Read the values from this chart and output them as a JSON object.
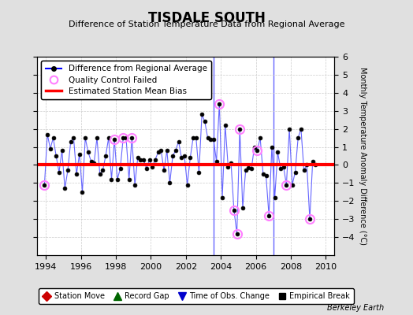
{
  "title": "TISDALE SOUTH",
  "subtitle": "Difference of Station Temperature Data from Regional Average",
  "ylabel": "Monthly Temperature Anomaly Difference (°C)",
  "xlabel_bottom": "Berkeley Earth",
  "xlim": [
    1993.5,
    2010.5
  ],
  "ylim": [
    -5,
    6
  ],
  "yticks": [
    -4,
    -3,
    -2,
    -1,
    0,
    1,
    2,
    3,
    4,
    5,
    6
  ],
  "xticks": [
    1994,
    1996,
    1998,
    2000,
    2002,
    2004,
    2006,
    2008,
    2010
  ],
  "bias_line": 0.0,
  "bias_color": "#ff0000",
  "line_color": "#6666ff",
  "marker_color": "#000000",
  "qc_color": "#ff80ff",
  "vertical_line_x": [
    2003.58,
    2007.0
  ],
  "vertical_line_color": "#6666ff",
  "background_color": "#e0e0e0",
  "plot_background": "#ffffff",
  "time_series": [
    [
      1993.9167,
      -1.1
    ],
    [
      1994.0833,
      1.7
    ],
    [
      1994.25,
      0.9
    ],
    [
      1994.4167,
      1.5
    ],
    [
      1994.5833,
      0.5
    ],
    [
      1994.75,
      -0.4
    ],
    [
      1994.9167,
      0.8
    ],
    [
      1995.0833,
      -1.3
    ],
    [
      1995.25,
      -0.3
    ],
    [
      1995.4167,
      1.3
    ],
    [
      1995.5833,
      1.5
    ],
    [
      1995.75,
      -0.5
    ],
    [
      1995.9167,
      0.6
    ],
    [
      1996.0833,
      -1.5
    ],
    [
      1996.25,
      1.5
    ],
    [
      1996.4167,
      0.7
    ],
    [
      1996.5833,
      0.2
    ],
    [
      1996.75,
      0.1
    ],
    [
      1996.9167,
      1.5
    ],
    [
      1997.0833,
      -0.5
    ],
    [
      1997.25,
      -0.3
    ],
    [
      1997.4167,
      0.5
    ],
    [
      1997.5833,
      1.5
    ],
    [
      1997.75,
      -0.8
    ],
    [
      1997.9167,
      1.4
    ],
    [
      1998.0833,
      -0.8
    ],
    [
      1998.25,
      -0.2
    ],
    [
      1998.4167,
      1.5
    ],
    [
      1998.5833,
      1.5
    ],
    [
      1998.75,
      -0.8
    ],
    [
      1998.9167,
      1.5
    ],
    [
      1999.0833,
      -1.1
    ],
    [
      1999.25,
      0.4
    ],
    [
      1999.4167,
      0.3
    ],
    [
      1999.5833,
      0.3
    ],
    [
      1999.75,
      -0.2
    ],
    [
      1999.9167,
      0.3
    ],
    [
      2000.0833,
      -0.1
    ],
    [
      2000.25,
      0.3
    ],
    [
      2000.4167,
      0.7
    ],
    [
      2000.5833,
      0.8
    ],
    [
      2000.75,
      -0.3
    ],
    [
      2000.9167,
      0.8
    ],
    [
      2001.0833,
      -1.0
    ],
    [
      2001.25,
      0.5
    ],
    [
      2001.4167,
      0.8
    ],
    [
      2001.5833,
      1.3
    ],
    [
      2001.75,
      0.4
    ],
    [
      2001.9167,
      0.5
    ],
    [
      2002.0833,
      -1.1
    ],
    [
      2002.25,
      0.4
    ],
    [
      2002.4167,
      1.5
    ],
    [
      2002.5833,
      1.5
    ],
    [
      2002.75,
      -0.4
    ],
    [
      2002.9167,
      2.8
    ],
    [
      2003.0833,
      2.4
    ],
    [
      2003.25,
      1.5
    ],
    [
      2003.4167,
      1.4
    ],
    [
      2003.5833,
      1.4
    ],
    [
      2003.75,
      0.2
    ],
    [
      2003.9167,
      3.4
    ],
    [
      2004.0833,
      -1.8
    ],
    [
      2004.25,
      2.2
    ],
    [
      2004.4167,
      -0.1
    ],
    [
      2004.5833,
      0.1
    ],
    [
      2004.75,
      -2.5
    ],
    [
      2004.9167,
      -3.8
    ],
    [
      2005.0833,
      2.0
    ],
    [
      2005.25,
      -2.4
    ],
    [
      2005.4167,
      -0.3
    ],
    [
      2005.5833,
      -0.15
    ],
    [
      2005.75,
      -0.2
    ],
    [
      2005.9167,
      1.0
    ],
    [
      2006.0833,
      0.8
    ],
    [
      2006.25,
      1.5
    ],
    [
      2006.4167,
      -0.5
    ],
    [
      2006.5833,
      -0.6
    ],
    [
      2006.75,
      -2.8
    ],
    [
      2006.9167,
      1.0
    ],
    [
      2007.0833,
      -1.8
    ],
    [
      2007.25,
      0.7
    ],
    [
      2007.4167,
      -0.2
    ],
    [
      2007.5833,
      -0.1
    ],
    [
      2007.75,
      -1.1
    ],
    [
      2007.9167,
      2.0
    ],
    [
      2008.0833,
      -1.1
    ],
    [
      2008.25,
      -0.4
    ],
    [
      2008.4167,
      1.5
    ],
    [
      2008.5833,
      2.0
    ],
    [
      2008.75,
      -0.3
    ],
    [
      2008.9167,
      0.0
    ],
    [
      2009.0833,
      -3.0
    ],
    [
      2009.25,
      0.2
    ],
    [
      2009.4167,
      0.0
    ]
  ],
  "qc_failed_points": [
    [
      1993.9167,
      -1.1
    ],
    [
      1997.9167,
      1.4
    ],
    [
      1998.4167,
      1.5
    ],
    [
      1998.9167,
      1.5
    ],
    [
      2003.9167,
      3.4
    ],
    [
      2004.75,
      -2.5
    ],
    [
      2004.9167,
      -3.8
    ],
    [
      2005.0833,
      2.0
    ],
    [
      2006.0833,
      0.8
    ],
    [
      2006.75,
      -2.8
    ],
    [
      2007.75,
      -1.1
    ],
    [
      2009.0833,
      -3.0
    ]
  ]
}
